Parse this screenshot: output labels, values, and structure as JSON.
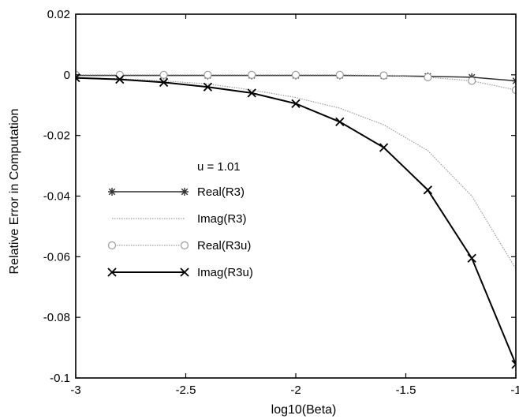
{
  "chart_data": {
    "type": "line",
    "title": "",
    "xlabel": "log10(Beta)",
    "ylabel": "Relative Error in Computation",
    "xlim": [
      -3,
      -1
    ],
    "ylim": [
      -0.1,
      0.02
    ],
    "xticks": [
      -3,
      -2.5,
      -2,
      -1.5,
      -1
    ],
    "xtick_labels": [
      "-3",
      "-2.5",
      "-2",
      "-1.5",
      "-1"
    ],
    "yticks": [
      0.02,
      0,
      -0.02,
      -0.04,
      -0.06,
      -0.08,
      -0.1
    ],
    "ytick_labels": [
      "0.02",
      "0",
      "-0.02",
      "-0.04",
      "-0.06",
      "-0.08",
      "-0.1"
    ],
    "grid": false,
    "legend_position": "center-left",
    "legend_heading": "u = 1.01",
    "series": [
      {
        "name": "Real(R3)",
        "color": "#303030",
        "line": "solid",
        "marker": "asterisk",
        "x": [
          -3,
          -2.8,
          -2.6,
          -2.4,
          -2.2,
          -2,
          -1.8,
          -1.6,
          -1.4,
          -1.2,
          -1
        ],
        "y": [
          -0.0002,
          -0.0002,
          -0.0002,
          -0.0002,
          -0.0002,
          -0.0002,
          -0.0002,
          -0.0003,
          -0.0005,
          -0.0008,
          -0.002
        ]
      },
      {
        "name": "Imag(R3)",
        "color": "#9a9a9a",
        "line": "dotted",
        "marker": "none",
        "x": [
          -3,
          -2.8,
          -2.6,
          -2.4,
          -2.2,
          -2,
          -1.8,
          -1.6,
          -1.4,
          -1.2,
          -1
        ],
        "y": [
          -0.001,
          -0.0013,
          -0.002,
          -0.003,
          -0.005,
          -0.0075,
          -0.011,
          -0.0165,
          -0.025,
          -0.04,
          -0.064
        ]
      },
      {
        "name": "Real(R3u)",
        "color": "#9a9a9a",
        "line": "dotted",
        "marker": "circle",
        "x": [
          -3,
          -2.8,
          -2.6,
          -2.4,
          -2.2,
          -2,
          -1.8,
          -1.6,
          -1.4,
          -1.2,
          -1
        ],
        "y": [
          0,
          0,
          0,
          0,
          0,
          0,
          0,
          -0.0002,
          -0.0008,
          -0.002,
          -0.005
        ]
      },
      {
        "name": "Imag(R3u)",
        "color": "#000000",
        "line": "solid",
        "marker": "x",
        "x": [
          -3,
          -2.8,
          -2.6,
          -2.4,
          -2.2,
          -2,
          -1.8,
          -1.6,
          -1.4,
          -1.2,
          -1
        ],
        "y": [
          -0.001,
          -0.0015,
          -0.0025,
          -0.004,
          -0.006,
          -0.0095,
          -0.0155,
          -0.024,
          -0.038,
          -0.0605,
          -0.0955
        ]
      }
    ]
  }
}
